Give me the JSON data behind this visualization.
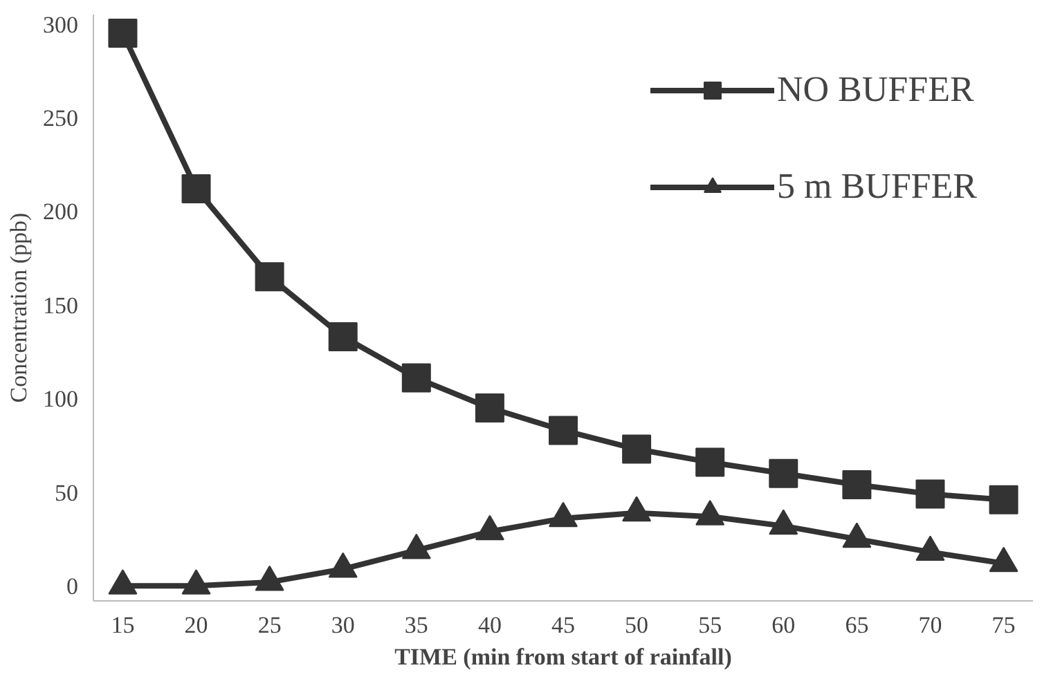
{
  "chart_data": {
    "type": "line",
    "xlabel": "TIME (min from start of rainfall)",
    "ylabel": "Concentration (ppb)",
    "x": [
      15,
      20,
      25,
      30,
      35,
      40,
      45,
      50,
      55,
      60,
      65,
      70,
      75
    ],
    "series": [
      {
        "name": "NO BUFFER",
        "color": "#333333",
        "marker": "square",
        "values": [
          295,
          212,
          165,
          133,
          111,
          95,
          83,
          73,
          66,
          60,
          54,
          49,
          46
        ]
      },
      {
        "name": "5 m BUFFER",
        "color": "#333333",
        "marker": "triangle",
        "values": [
          0,
          0,
          2,
          9,
          19,
          29,
          36,
          39,
          37,
          32,
          25,
          18,
          12
        ]
      }
    ],
    "xlim": [
      13,
      77
    ],
    "xticks": [
      15,
      20,
      25,
      30,
      35,
      40,
      45,
      50,
      55,
      60,
      65,
      70,
      75
    ],
    "ylim": [
      -8,
      305
    ],
    "yticks": [
      0,
      50,
      100,
      150,
      200,
      250,
      300
    ],
    "grid": false,
    "legend": "top right",
    "line_style": "solid"
  }
}
